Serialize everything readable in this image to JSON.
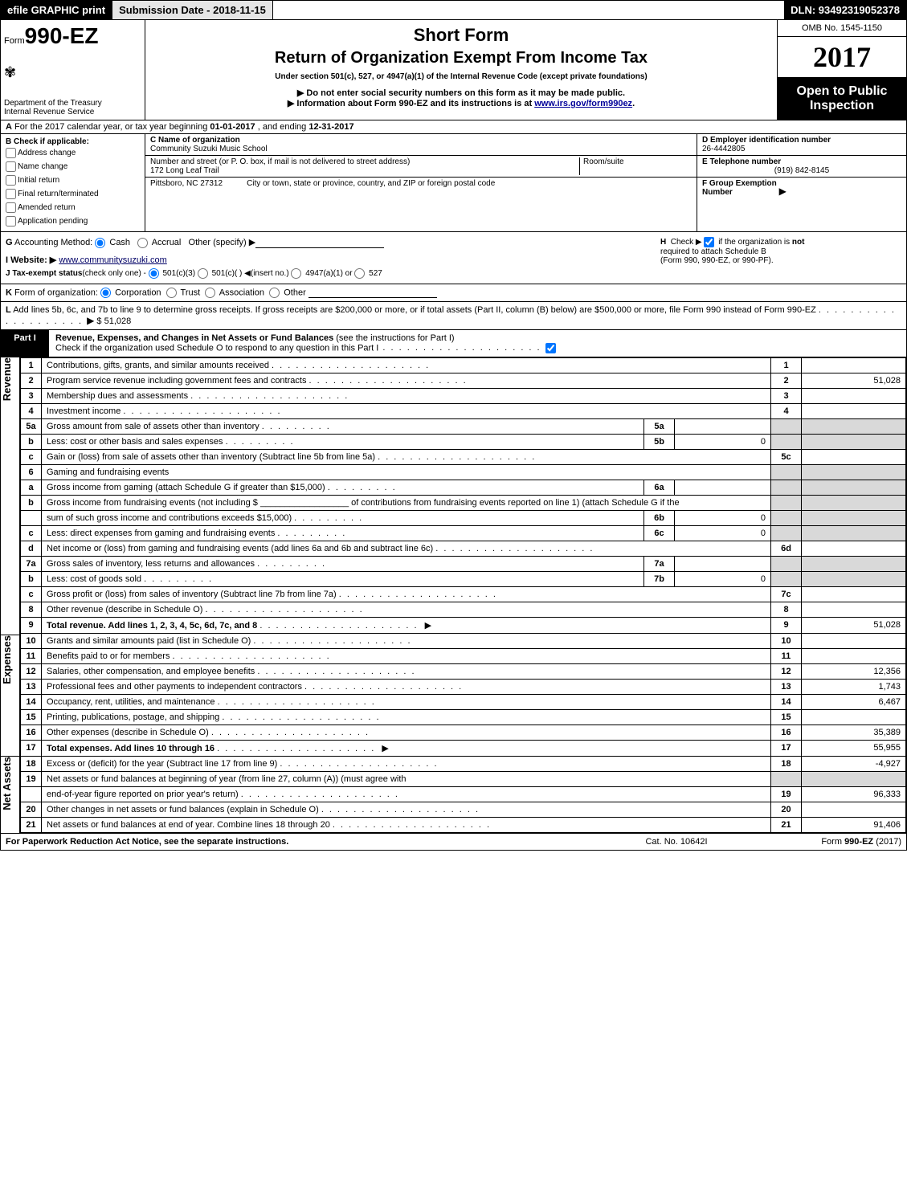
{
  "topbar": {
    "efile": "efile GRAPHIC print",
    "submission": "Submission Date - 2018-11-15",
    "dln": "DLN: 93492319052378"
  },
  "header": {
    "form_prefix": "Form",
    "form_number": "990-EZ",
    "short_form": "Short Form",
    "title": "Return of Organization Exempt From Income Tax",
    "under_section": "Under section 501(c), 527, or 4947(a)(1) of the Internal Revenue Code (except private foundations)",
    "note1": "▶ Do not enter social security numbers on this form as it may be made public.",
    "note2_prefix": "▶ Information about Form 990-EZ and its instructions is at ",
    "note2_link": "www.irs.gov/form990ez",
    "note2_suffix": ".",
    "dept": "Department of the Treasury\nInternal Revenue Service",
    "omb": "OMB No. 1545-1150",
    "year": "2017",
    "open_public": "Open to Public\nInspection"
  },
  "line_A": {
    "label": "A",
    "text_pre": "For the 2017 calendar year, or tax year beginning ",
    "begin": "01-01-2017",
    "mid": " , and ending ",
    "end": "12-31-2017"
  },
  "box_B": {
    "label": "B",
    "header": "Check if applicable:",
    "items": [
      "Address change",
      "Name change",
      "Initial return",
      "Final return/terminated",
      "Amended return",
      "Application pending"
    ]
  },
  "box_C": {
    "name_label": "C Name of organization",
    "name": "Community Suzuki Music School",
    "street_label": "Number and street (or P. O. box, if mail is not delivered to street address)",
    "street": "172 Long Leaf Trail",
    "room_label": "Room/suite",
    "city_line": "Pittsboro, NC  27312",
    "city_instr": "City or town, state or province, country, and ZIP or foreign postal code"
  },
  "box_D": {
    "ein_label": "D Employer identification number",
    "ein": "26-4442805",
    "tel_label": "E Telephone number",
    "tel": "(919) 842-8145",
    "grp_label": "F Group Exemption\nNumber",
    "grp_arrow": "▶"
  },
  "line_G": {
    "label": "G",
    "text": "Accounting Method:",
    "cash": "Cash",
    "accrual": "Accrual",
    "other": "Other (specify) ▶"
  },
  "line_H": {
    "label": "H",
    "text1": "Check ▶",
    "text2": "if the organization is",
    "text3": "not",
    "text4": "required to attach Schedule B",
    "text5": "(Form 990, 990-EZ, or 990-PF)."
  },
  "line_I": {
    "label": "I Website: ▶",
    "value": "www.communitysuzuki.com"
  },
  "line_J": {
    "label": "J Tax-exempt status",
    "note": "(check only one) -",
    "opt1": "501(c)(3)",
    "opt2": "501(c)(  )",
    "opt2_note": "◀(insert no.)",
    "opt3": "4947(a)(1) or",
    "opt4": "527"
  },
  "line_K": {
    "label": "K",
    "text": "Form of organization:",
    "opts": [
      "Corporation",
      "Trust",
      "Association",
      "Other"
    ]
  },
  "line_L": {
    "label": "L",
    "text": "Add lines 5b, 6c, and 7b to line 9 to determine gross receipts. If gross receipts are $200,000 or more, or if total assets (Part II, column (B) below) are $500,000 or more, file Form 990 instead of Form 990-EZ",
    "arrow": "▶",
    "amount": "$ 51,028"
  },
  "part1": {
    "tag": "Part I",
    "title": "Revenue, Expenses, and Changes in Net Assets or Fund Balances",
    "note": "(see the instructions for Part I)",
    "check_text": "Check if the organization used Schedule O to respond to any question in this Part I"
  },
  "sections": {
    "revenue": "Revenue",
    "expenses": "Expenses",
    "netassets": "Net Assets"
  },
  "rows": [
    {
      "n": "1",
      "d": "Contributions, gifts, grants, and similar amounts received",
      "col": "1",
      "val": ""
    },
    {
      "n": "2",
      "d": "Program service revenue including government fees and contracts",
      "col": "2",
      "val": "51,028"
    },
    {
      "n": "3",
      "d": "Membership dues and assessments",
      "col": "3",
      "val": ""
    },
    {
      "n": "4",
      "d": "Investment income",
      "col": "4",
      "val": ""
    },
    {
      "n": "5a",
      "d": "Gross amount from sale of assets other than inventory",
      "sl": "5a",
      "sv": ""
    },
    {
      "n": "b",
      "d": "Less: cost or other basis and sales expenses",
      "sl": "5b",
      "sv": "0"
    },
    {
      "n": "c",
      "d": "Gain or (loss) from sale of assets other than inventory (Subtract line 5b from line 5a)",
      "col": "5c",
      "val": ""
    },
    {
      "n": "6",
      "d": "Gaming and fundraising events"
    },
    {
      "n": "a",
      "d": "Gross income from gaming (attach Schedule G if greater than $15,000)",
      "sl": "6a",
      "sv": ""
    },
    {
      "n": "b",
      "d": "Gross income from fundraising events (not including $ __________________ of contributions from fundraising events reported on line 1) (attach Schedule G if the"
    },
    {
      "n": "",
      "d": "sum of such gross income and contributions exceeds $15,000)",
      "sl": "6b",
      "sv": "0"
    },
    {
      "n": "c",
      "d": "Less: direct expenses from gaming and fundraising events",
      "sl": "6c",
      "sv": "0"
    },
    {
      "n": "d",
      "d": "Net income or (loss) from gaming and fundraising events (add lines 6a and 6b and subtract line 6c)",
      "col": "6d",
      "val": ""
    },
    {
      "n": "7a",
      "d": "Gross sales of inventory, less returns and allowances",
      "sl": "7a",
      "sv": ""
    },
    {
      "n": "b",
      "d": "Less: cost of goods sold",
      "sl": "7b",
      "sv": "0"
    },
    {
      "n": "c",
      "d": "Gross profit or (loss) from sales of inventory (Subtract line 7b from line 7a)",
      "col": "7c",
      "val": ""
    },
    {
      "n": "8",
      "d": "Other revenue (describe in Schedule O)",
      "col": "8",
      "val": ""
    },
    {
      "n": "9",
      "d": "Total revenue. Add lines 1, 2, 3, 4, 5c, 6d, 7c, and 8",
      "col": "9",
      "val": "51,028",
      "bold": true,
      "arrow": true
    },
    {
      "n": "10",
      "d": "Grants and similar amounts paid (list in Schedule O)",
      "col": "10",
      "val": ""
    },
    {
      "n": "11",
      "d": "Benefits paid to or for members",
      "col": "11",
      "val": ""
    },
    {
      "n": "12",
      "d": "Salaries, other compensation, and employee benefits",
      "col": "12",
      "val": "12,356"
    },
    {
      "n": "13",
      "d": "Professional fees and other payments to independent contractors",
      "col": "13",
      "val": "1,743"
    },
    {
      "n": "14",
      "d": "Occupancy, rent, utilities, and maintenance",
      "col": "14",
      "val": "6,467"
    },
    {
      "n": "15",
      "d": "Printing, publications, postage, and shipping",
      "col": "15",
      "val": ""
    },
    {
      "n": "16",
      "d": "Other expenses (describe in Schedule O)",
      "col": "16",
      "val": "35,389"
    },
    {
      "n": "17",
      "d": "Total expenses. Add lines 10 through 16",
      "col": "17",
      "val": "55,955",
      "bold": true,
      "arrow": true
    },
    {
      "n": "18",
      "d": "Excess or (deficit) for the year (Subtract line 17 from line 9)",
      "col": "18",
      "val": "-4,927"
    },
    {
      "n": "19",
      "d": "Net assets or fund balances at beginning of year (from line 27, column (A)) (must agree with"
    },
    {
      "n": "",
      "d": "end-of-year figure reported on prior year's return)",
      "col": "19",
      "val": "96,333"
    },
    {
      "n": "20",
      "d": "Other changes in net assets or fund balances (explain in Schedule O)",
      "col": "20",
      "val": ""
    },
    {
      "n": "21",
      "d": "Net assets or fund balances at end of year. Combine lines 18 through 20",
      "col": "21",
      "val": "91,406"
    }
  ],
  "footer": {
    "left": "For Paperwork Reduction Act Notice, see the separate instructions.",
    "center": "Cat. No. 10642I",
    "right_pre": "Form ",
    "right_form": "990-EZ",
    "right_yr": " (2017)"
  }
}
